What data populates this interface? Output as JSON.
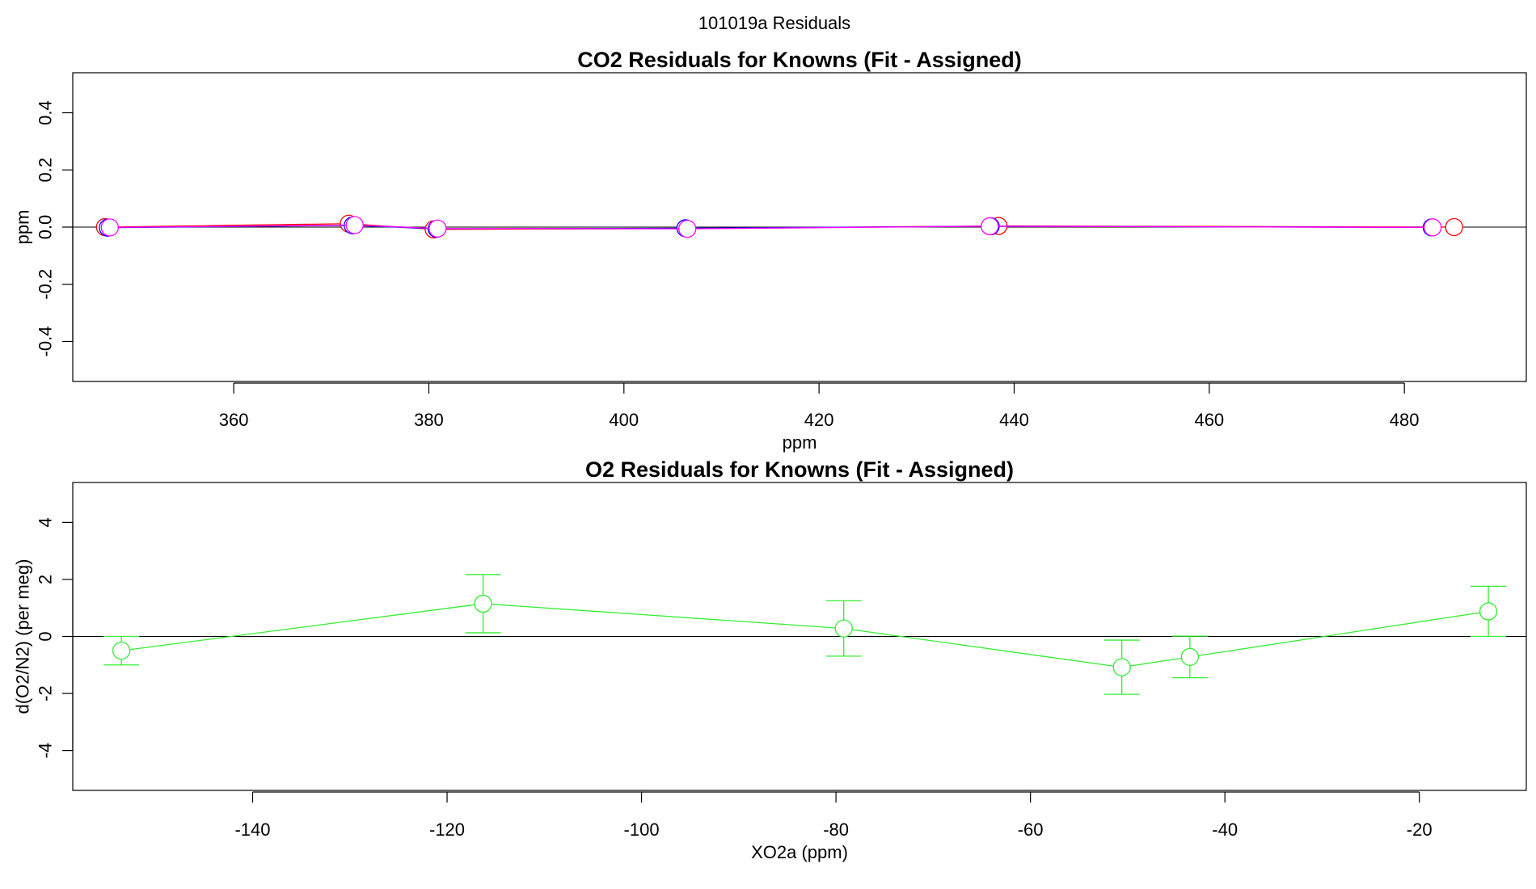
{
  "page": {
    "title": "101019a  Residuals"
  },
  "colors": {
    "axis": "#000000",
    "zero_line": "#000000",
    "co2_red": "#ff0000",
    "co2_blue": "#0000ff",
    "co2_magenta": "#ff00ff",
    "o2_green": "#33ee33"
  },
  "chart_data": [
    {
      "type": "line",
      "title": "CO2 Residuals for Knowns (Fit - Assigned)",
      "xlabel": "ppm",
      "ylabel": "ppm",
      "xlim": [
        343.5,
        492.5
      ],
      "ylim": [
        -0.54,
        0.54
      ],
      "xticks": [
        360,
        380,
        400,
        420,
        440,
        460,
        480
      ],
      "yticks": [
        -0.4,
        -0.2,
        0.0,
        0.2,
        0.4
      ],
      "ytick_labels": [
        "-0.4",
        "-0.2",
        "0.0",
        "0.2",
        "0.4"
      ],
      "zero_line": true,
      "marker": "open-circle",
      "series": [
        {
          "color": "#ff0000",
          "x": [
            346.8,
            371.8,
            380.5,
            406.4,
            438.4,
            485.1
          ],
          "y": [
            0.0,
            0.012,
            -0.008,
            -0.005,
            0.004,
            0.0
          ]
        },
        {
          "color": "#0000ff",
          "x": [
            347.1,
            372.2,
            380.8,
            406.3,
            437.6,
            482.8
          ],
          "y": [
            -0.002,
            0.006,
            -0.006,
            -0.004,
            0.003,
            -0.001
          ]
        },
        {
          "color": "#ff00ff",
          "x": [
            347.3,
            372.4,
            380.9,
            406.5,
            437.5,
            482.9
          ],
          "y": [
            -0.001,
            0.007,
            -0.005,
            -0.006,
            0.003,
            -0.001
          ]
        }
      ]
    },
    {
      "type": "line",
      "title": "O2 Residuals for Knowns (Fit - Assigned)",
      "xlabel": "XO2a (ppm)",
      "ylabel": "d(O2/N2) (per meg)",
      "xlim": [
        -158.5,
        -9.0
      ],
      "ylim": [
        -5.4,
        5.4
      ],
      "xticks": [
        -140,
        -120,
        -100,
        -80,
        -60,
        -40,
        -20
      ],
      "yticks": [
        -4,
        -2,
        0,
        2,
        4
      ],
      "ytick_labels": [
        "-4",
        "-2",
        "0",
        "2",
        "4"
      ],
      "zero_line": true,
      "marker": "open-circle",
      "error_bars": true,
      "series": [
        {
          "color": "#33ee33",
          "x": [
            -153.5,
            -116.3,
            -79.2,
            -50.6,
            -43.6,
            -12.9
          ],
          "y": [
            -0.5,
            1.15,
            0.28,
            -1.08,
            -0.72,
            0.88
          ],
          "err": [
            0.5,
            1.02,
            0.97,
            0.95,
            0.73,
            0.88
          ]
        }
      ]
    }
  ]
}
